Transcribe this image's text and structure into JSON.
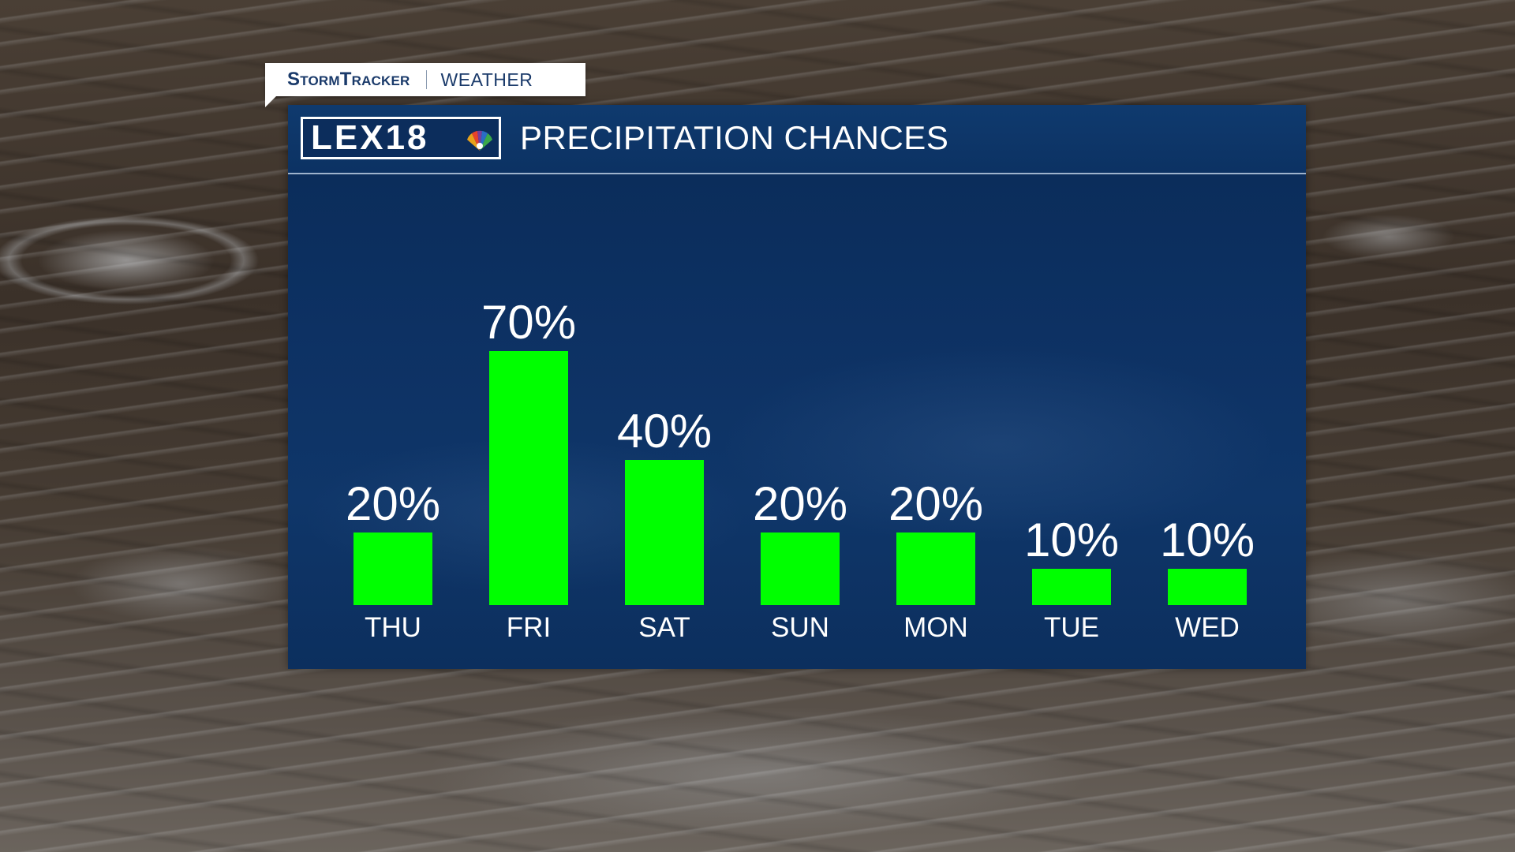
{
  "brand": {
    "stormtracker_label": "StormTracker",
    "weather_label": "WEATHER",
    "station_logo_text": "LEX18"
  },
  "colors": {
    "bar": "#00ff00",
    "panel": "#0d3163",
    "text": "#ffffff"
  },
  "chart_data": {
    "type": "bar",
    "title": "PRECIPITATION CHANCES",
    "categories": [
      "THU",
      "FRI",
      "SAT",
      "SUN",
      "MON",
      "TUE",
      "WED"
    ],
    "values": [
      20,
      70,
      40,
      20,
      20,
      10,
      10
    ],
    "value_labels": [
      "20%",
      "70%",
      "40%",
      "20%",
      "20%",
      "10%",
      "10%"
    ],
    "xlabel": "",
    "ylabel": "",
    "ylim": [
      0,
      100
    ],
    "grid": false,
    "legend": "none"
  }
}
